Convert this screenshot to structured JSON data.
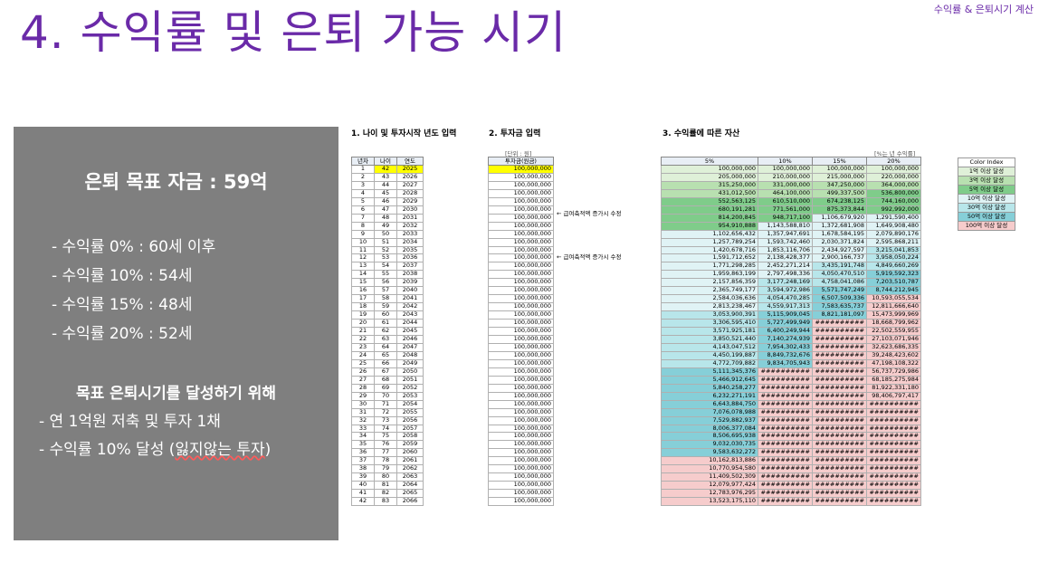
{
  "header": {
    "top_label": "수익률 & 은퇴시기 계산",
    "title": "4. 수익률 및 은퇴 가능 시기"
  },
  "panel": {
    "goal": "은퇴 목표 자금 : 59억",
    "bullets": [
      "- 수익률   0% : 60세 이후",
      "- 수익률 10% : 54세",
      "- 수익률 15% : 48세",
      "- 수익률 20% : 52세"
    ],
    "plan_title": "목표 은퇴시기를 달성하기 위해",
    "plan": [
      "- 연 1억원 저축 및 투자 1채",
      "- 수익률 10% 달성 ("
    ],
    "plan_tail_wavy": "잃지않는 투자",
    "plan_tail_end": ")"
  },
  "sheet": {
    "section1": "1. 나이 및 투자시작 년도 입력",
    "section2": "2. 투자금 입력",
    "section3": "3. 수익률에 따른 자산",
    "unit_note": "[단위 : 원]",
    "rate_note": "[%는 년 수익률]",
    "headers1": [
      "년차",
      "나이",
      "연도"
    ],
    "header2": "투자금(원금)",
    "headers3": [
      "5%",
      "10%",
      "15%",
      "20%"
    ],
    "salary_note": "← 급여축적액 증가시 수정",
    "legend_title": "Color Index",
    "legend": [
      "1억 이상 달성",
      "3억 이상 달성",
      "5억 이상 달성",
      "10억 이상 달성",
      "30억 이상 달성",
      "50억 이상 달성",
      "100억 이상 달성"
    ],
    "legend_colors": [
      "#dff0d8",
      "#b8e0b0",
      "#7fcc8a",
      "#e0f3f5",
      "#b8e6ea",
      "#86cfd8",
      "#f6cccc"
    ],
    "investment": "100,000,000",
    "rows": [
      [
        "1",
        "42",
        "2025",
        "100,000,000",
        "100,000,000",
        "100,000,000",
        "100,000,000"
      ],
      [
        "2",
        "43",
        "2026",
        "205,000,000",
        "210,000,000",
        "215,000,000",
        "220,000,000"
      ],
      [
        "3",
        "44",
        "2027",
        "315,250,000",
        "331,000,000",
        "347,250,000",
        "364,000,000"
      ],
      [
        "4",
        "45",
        "2028",
        "431,012,500",
        "464,100,000",
        "499,337,500",
        "536,800,000"
      ],
      [
        "5",
        "46",
        "2029",
        "552,563,125",
        "610,510,000",
        "674,238,125",
        "744,160,000"
      ],
      [
        "6",
        "47",
        "2030",
        "680,191,281",
        "771,561,000",
        "875,373,844",
        "992,992,000"
      ],
      [
        "7",
        "48",
        "2031",
        "814,200,845",
        "948,717,100",
        "1,106,679,920",
        "1,291,590,400"
      ],
      [
        "8",
        "49",
        "2032",
        "954,910,888",
        "1,143,588,810",
        "1,372,681,908",
        "1,649,908,480"
      ],
      [
        "9",
        "50",
        "2033",
        "1,102,656,432",
        "1,357,947,691",
        "1,678,584,195",
        "2,079,890,176"
      ],
      [
        "10",
        "51",
        "2034",
        "1,257,789,254",
        "1,593,742,460",
        "2,030,371,824",
        "2,595,868,211"
      ],
      [
        "11",
        "52",
        "2035",
        "1,420,678,716",
        "1,853,116,706",
        "2,434,927,597",
        "3,215,041,853"
      ],
      [
        "12",
        "53",
        "2036",
        "1,591,712,652",
        "2,138,428,377",
        "2,900,166,737",
        "3,958,050,224"
      ],
      [
        "13",
        "54",
        "2037",
        "1,771,298,285",
        "2,452,271,214",
        "3,435,191,748",
        "4,849,660,269"
      ],
      [
        "14",
        "55",
        "2038",
        "1,959,863,199",
        "2,797,498,336",
        "4,050,470,510",
        "5,919,592,323"
      ],
      [
        "15",
        "56",
        "2039",
        "2,157,856,359",
        "3,177,248,169",
        "4,758,041,086",
        "7,203,510,787"
      ],
      [
        "16",
        "57",
        "2040",
        "2,365,749,177",
        "3,594,972,986",
        "5,571,747,249",
        "8,744,212,945"
      ],
      [
        "17",
        "58",
        "2041",
        "2,584,036,636",
        "4,054,470,285",
        "6,507,509,336",
        "10,593,055,534"
      ],
      [
        "18",
        "59",
        "2042",
        "2,813,238,467",
        "4,559,917,313",
        "7,583,635,737",
        "12,811,666,640"
      ],
      [
        "19",
        "60",
        "2043",
        "3,053,900,391",
        "5,115,909,045",
        "8,821,181,097",
        "15,473,999,969"
      ],
      [
        "20",
        "61",
        "2044",
        "3,306,595,410",
        "5,727,499,949",
        "##########",
        "18,668,799,962"
      ],
      [
        "21",
        "62",
        "2045",
        "3,571,925,181",
        "6,400,249,944",
        "##########",
        "22,502,559,955"
      ],
      [
        "22",
        "63",
        "2046",
        "3,850,521,440",
        "7,140,274,939",
        "##########",
        "27,103,071,946"
      ],
      [
        "23",
        "64",
        "2047",
        "4,143,047,512",
        "7,954,302,433",
        "##########",
        "32,623,686,335"
      ],
      [
        "24",
        "65",
        "2048",
        "4,450,199,887",
        "8,849,732,676",
        "##########",
        "39,248,423,602"
      ],
      [
        "25",
        "66",
        "2049",
        "4,772,709,882",
        "9,834,705,943",
        "##########",
        "47,198,108,322"
      ],
      [
        "26",
        "67",
        "2050",
        "5,111,345,376",
        "##########",
        "##########",
        "56,737,729,986"
      ],
      [
        "27",
        "68",
        "2051",
        "5,466,912,645",
        "##########",
        "##########",
        "68,185,275,984"
      ],
      [
        "28",
        "69",
        "2052",
        "5,840,258,277",
        "##########",
        "##########",
        "81,922,331,180"
      ],
      [
        "29",
        "70",
        "2053",
        "6,232,271,191",
        "##########",
        "##########",
        "98,406,797,417"
      ],
      [
        "30",
        "71",
        "2054",
        "6,643,884,750",
        "##########",
        "##########",
        "##########"
      ],
      [
        "31",
        "72",
        "2055",
        "7,076,078,988",
        "##########",
        "##########",
        "##########"
      ],
      [
        "32",
        "73",
        "2056",
        "7,529,882,937",
        "##########",
        "##########",
        "##########"
      ],
      [
        "33",
        "74",
        "2057",
        "8,006,377,084",
        "##########",
        "##########",
        "##########"
      ],
      [
        "34",
        "75",
        "2058",
        "8,506,695,938",
        "##########",
        "##########",
        "##########"
      ],
      [
        "35",
        "76",
        "2059",
        "9,032,030,735",
        "##########",
        "##########",
        "##########"
      ],
      [
        "36",
        "77",
        "2060",
        "9,583,632,272",
        "##########",
        "##########",
        "##########"
      ],
      [
        "37",
        "78",
        "2061",
        "10,162,813,886",
        "##########",
        "##########",
        "##########"
      ],
      [
        "38",
        "79",
        "2062",
        "10,770,954,580",
        "##########",
        "##########",
        "##########"
      ],
      [
        "39",
        "80",
        "2063",
        "11,409,502,309",
        "##########",
        "##########",
        "##########"
      ],
      [
        "40",
        "81",
        "2064",
        "12,079,977,424",
        "##########",
        "##########",
        "##########"
      ],
      [
        "41",
        "82",
        "2065",
        "12,783,976,295",
        "##########",
        "##########",
        "##########"
      ],
      [
        "42",
        "83",
        "2066",
        "13,523,175,110",
        "##########",
        "##########",
        "##########"
      ]
    ]
  }
}
